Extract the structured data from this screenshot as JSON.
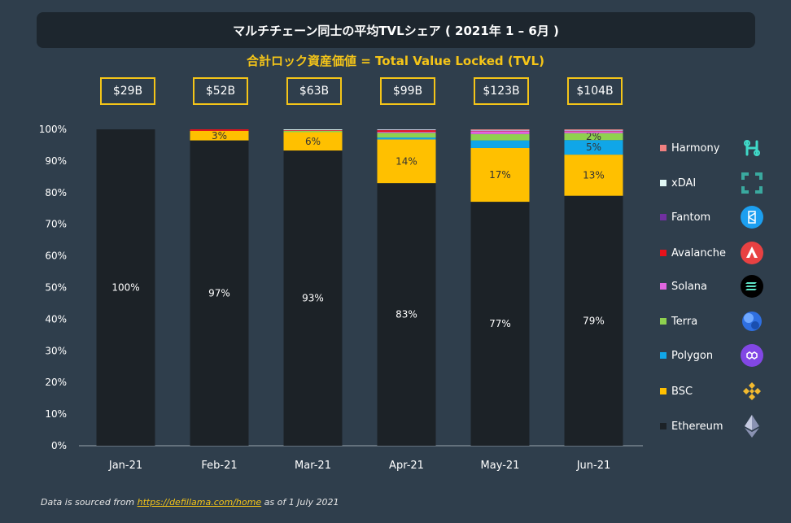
{
  "title": "マルチチェーン同士の平均TVLシェア ( 2021年 1 – 6月 )",
  "subtitle": "合計ロック資産価値 = Total Value Locked (TVL)",
  "tvl_labels": [
    "$29B",
    "$52B",
    "$63B",
    "$99B",
    "$123B",
    "$104B"
  ],
  "footer": {
    "prefix": "Data is sourced from ",
    "link": "https://defillama.com/home",
    "suffix": " as of 1 July 2021"
  },
  "legend": [
    {
      "name": "Harmony",
      "color": "#f08080",
      "icon": "harmony-icon"
    },
    {
      "name": "xDAI",
      "color": "#e0f7f4",
      "icon": "xdai-icon"
    },
    {
      "name": "Fantom",
      "color": "#7030a0",
      "icon": "fantom-icon"
    },
    {
      "name": "Avalanche",
      "color": "#e8111a",
      "icon": "avalanche-icon"
    },
    {
      "name": "Solana",
      "color": "#e066e0",
      "icon": "solana-icon"
    },
    {
      "name": "Terra",
      "color": "#8fd14f",
      "icon": "terra-icon"
    },
    {
      "name": "Polygon",
      "color": "#10a6e8",
      "icon": "polygon-icon"
    },
    {
      "name": "BSC",
      "color": "#ffc000",
      "icon": "bsc-icon"
    },
    {
      "name": "Ethereum",
      "color": "#1c2227",
      "icon": "ethereum-icon"
    }
  ],
  "chart_data": {
    "type": "bar",
    "stacked": true,
    "categories": [
      "Jan-21",
      "Feb-21",
      "Mar-21",
      "Apr-21",
      "May-21",
      "Jun-21"
    ],
    "ylim": [
      0,
      100
    ],
    "y_ticks": [
      "0%",
      "10%",
      "20%",
      "30%",
      "40%",
      "50%",
      "60%",
      "70%",
      "80%",
      "90%",
      "100%"
    ],
    "series": [
      {
        "name": "Ethereum",
        "color": "#1c2227",
        "values": [
          100,
          96.5,
          93.3,
          83,
          77.1,
          79
        ],
        "labels": [
          "100%",
          "97%",
          "93%",
          "83%",
          "77%",
          "79%"
        ]
      },
      {
        "name": "BSC",
        "color": "#ffc000",
        "values": [
          0,
          3,
          5.8,
          13.8,
          17,
          13
        ],
        "labels": [
          "",
          "3%",
          "6%",
          "14%",
          "17%",
          "13%"
        ]
      },
      {
        "name": "Polygon",
        "color": "#10a6e8",
        "values": [
          0,
          0,
          0,
          0.6,
          2.4,
          4.6
        ],
        "labels": [
          "",
          "",
          "",
          "",
          "",
          "5%"
        ]
      },
      {
        "name": "Terra",
        "color": "#8fd14f",
        "values": [
          0,
          0,
          0.4,
          1.5,
          2,
          2.2
        ],
        "labels": [
          "",
          "",
          "",
          "",
          "",
          "2%"
        ]
      },
      {
        "name": "Solana",
        "color": "#e066e0",
        "values": [
          0,
          0,
          0,
          0.3,
          0.9,
          0.6
        ],
        "labels": [
          "",
          "",
          "",
          "",
          "",
          ""
        ]
      },
      {
        "name": "Avalanche",
        "color": "#e8111a",
        "values": [
          0,
          0.5,
          0.2,
          0.6,
          0.2,
          0.2
        ],
        "labels": [
          "",
          "",
          "",
          "",
          "",
          ""
        ]
      },
      {
        "name": "Fantom",
        "color": "#7030a0",
        "values": [
          0,
          0,
          0,
          0.1,
          0.1,
          0.1
        ],
        "labels": [
          "",
          "",
          "",
          "",
          "",
          ""
        ]
      },
      {
        "name": "xDAI",
        "color": "#e0f7f4",
        "values": [
          0,
          0,
          0.3,
          0.1,
          0.1,
          0.1
        ],
        "labels": [
          "",
          "",
          "",
          "",
          "",
          ""
        ]
      },
      {
        "name": "Harmony",
        "color": "#f08080",
        "values": [
          0,
          0,
          0,
          0,
          0.2,
          0.2
        ],
        "labels": [
          "",
          "",
          "",
          "",
          "",
          ""
        ]
      }
    ]
  }
}
